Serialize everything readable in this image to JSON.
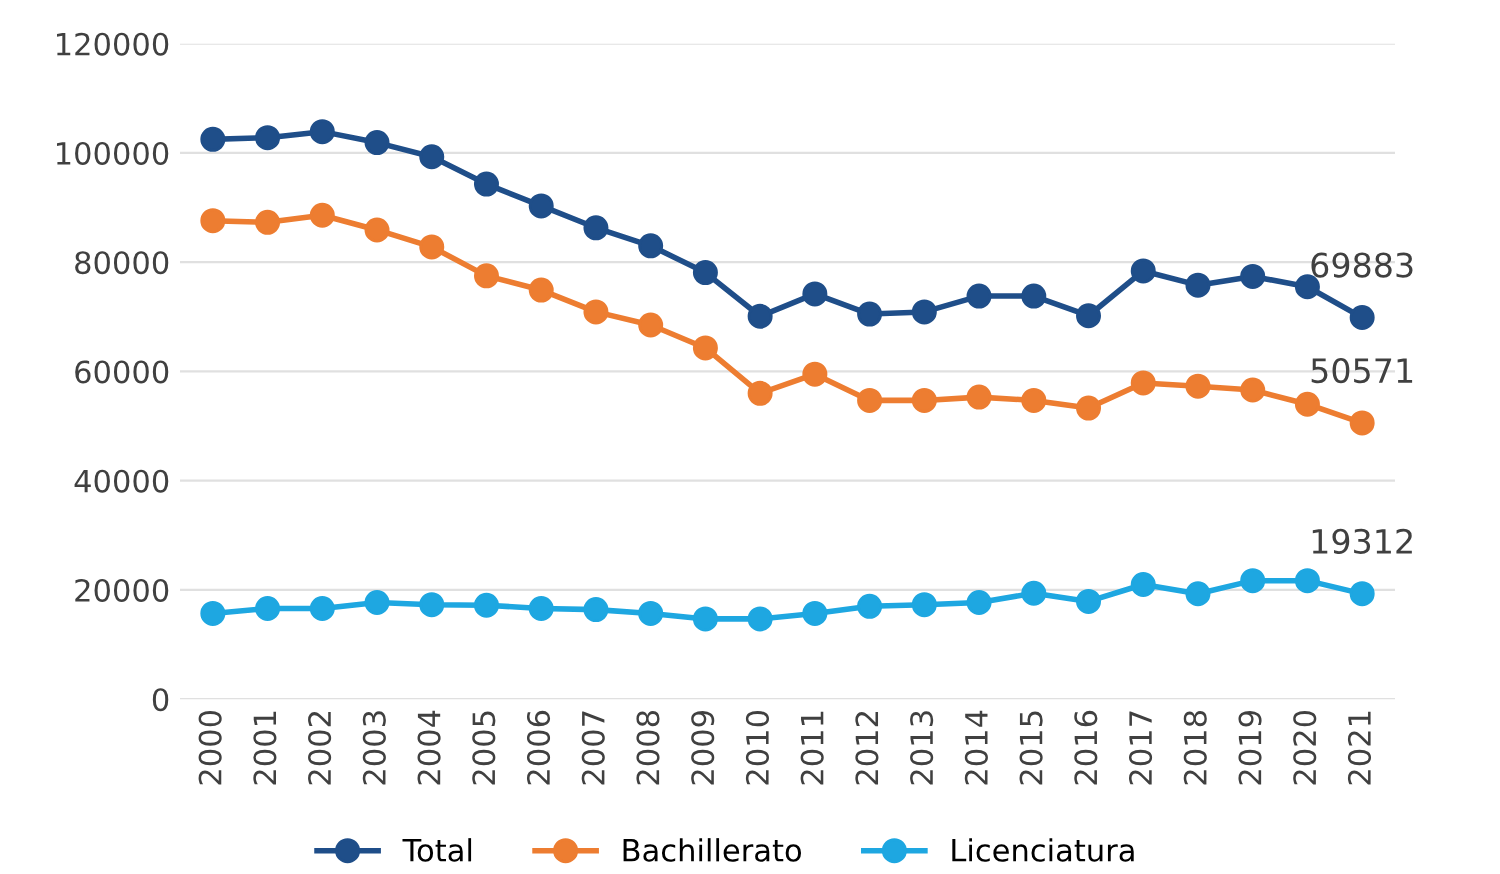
{
  "chart_data": {
    "type": "line",
    "categories": [
      "2000",
      "2001",
      "2002",
      "2003",
      "2004",
      "2005",
      "2006",
      "2007",
      "2008",
      "2009",
      "2010",
      "2011",
      "2012",
      "2013",
      "2014",
      "2015",
      "2016",
      "2017",
      "2018",
      "2019",
      "2020",
      "2021"
    ],
    "series": [
      {
        "name": "Total",
        "color": "#1f4e89",
        "values": [
          102500,
          102800,
          103900,
          101900,
          99300,
          94300,
          90300,
          86300,
          83000,
          78100,
          70100,
          74200,
          70500,
          70900,
          73800,
          73800,
          70200,
          78400,
          75800,
          77400,
          75500,
          69883
        ],
        "value_labels": [
          null,
          null,
          null,
          null,
          null,
          null,
          null,
          null,
          null,
          null,
          null,
          null,
          null,
          null,
          null,
          null,
          null,
          null,
          null,
          null,
          null,
          "69883"
        ]
      },
      {
        "name": "Bachillerato",
        "color": "#ed7d31",
        "values": [
          87600,
          87300,
          88600,
          85900,
          82800,
          77500,
          74900,
          70900,
          68500,
          64300,
          56000,
          59500,
          54700,
          54700,
          55300,
          54700,
          53300,
          57900,
          57300,
          56600,
          54000,
          50571
        ],
        "value_labels": [
          null,
          null,
          null,
          null,
          null,
          null,
          null,
          null,
          null,
          null,
          null,
          null,
          null,
          null,
          null,
          null,
          null,
          null,
          null,
          null,
          null,
          "50571"
        ]
      },
      {
        "name": "Licenciatura",
        "color": "#1ea7e1",
        "values": [
          15700,
          16600,
          16600,
          17700,
          17300,
          17200,
          16600,
          16400,
          15700,
          14700,
          14700,
          15700,
          17000,
          17300,
          17700,
          19400,
          17900,
          21000,
          19300,
          21700,
          21700,
          19312
        ],
        "value_labels": [
          null,
          null,
          null,
          null,
          null,
          null,
          null,
          null,
          null,
          null,
          null,
          null,
          null,
          null,
          null,
          null,
          null,
          null,
          null,
          null,
          null,
          "19312"
        ]
      }
    ],
    "ylim": [
      0,
      120000
    ],
    "yticks": [
      0,
      20000,
      40000,
      60000,
      80000,
      100000,
      120000
    ],
    "grid": "y",
    "legend": "bottom",
    "marker": "circle",
    "line_style": "solid"
  }
}
